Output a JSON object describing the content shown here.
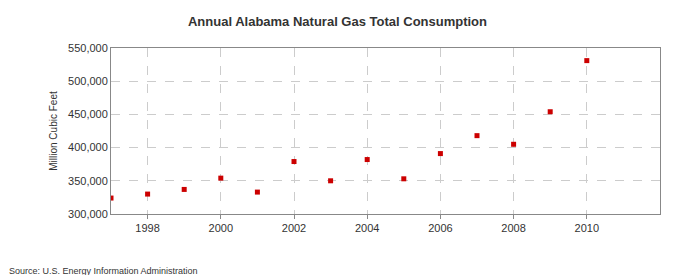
{
  "chart_data": {
    "type": "scatter",
    "title": "Annual Alabama Natural Gas Total Consumption",
    "y_label": "Million Cubic Feet",
    "annotations": [
      "Source: U.S. Energy Information Administration"
    ],
    "x": [
      1997,
      1998,
      1999,
      2000,
      2001,
      2002,
      2003,
      2004,
      2005,
      2006,
      2007,
      2008,
      2009,
      2010
    ],
    "values": [
      324000,
      330000,
      337000,
      354000,
      333000,
      379000,
      350000,
      382000,
      353000,
      391000,
      418000,
      405000,
      454000,
      531000
    ],
    "color": "#cc0000",
    "marker": "square",
    "xlim": [
      1997,
      2012
    ],
    "xticks": [
      1998,
      2000,
      2002,
      2004,
      2006,
      2008,
      2010
    ],
    "ylim": [
      300000,
      550000
    ],
    "yticks": [
      {
        "value": 300000,
        "label": "300,000"
      },
      {
        "value": 350000,
        "label": "350,000"
      },
      {
        "value": 400000,
        "label": "400,000"
      },
      {
        "value": 450000,
        "label": "450,000"
      },
      {
        "value": 500000,
        "label": "500,000"
      },
      {
        "value": 550000,
        "label": "550,000"
      }
    ],
    "grid": true
  }
}
